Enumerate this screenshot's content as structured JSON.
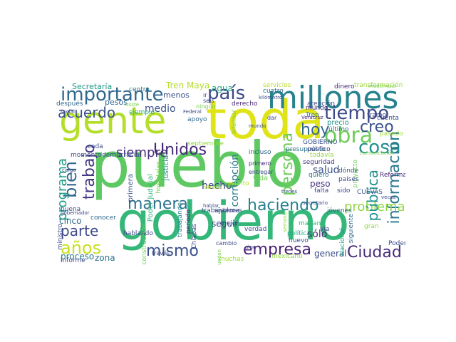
{
  "words": [
    {
      "text": "pueblo",
      "color": "#5ec962"
    },
    {
      "text": "gobierno",
      "color": "#35b779"
    },
    {
      "text": "toda",
      "color": "#dfe318"
    },
    {
      "text": "gente",
      "color": "#b5de2b"
    },
    {
      "text": "millones",
      "color": "#26828e"
    },
    {
      "text": "importante",
      "color": "#31688e"
    },
    {
      "text": "país",
      "color": "#3e4a89"
    },
    {
      "text": "tiempo",
      "color": "#3e4a89"
    },
    {
      "text": "obra",
      "color": "#6ece58"
    },
    {
      "text": "hoy",
      "color": "#31688e"
    },
    {
      "text": "creo",
      "color": "#3b528b"
    },
    {
      "text": "acuerdo",
      "color": "#3b528b"
    },
    {
      "text": "cosa",
      "color": "#21918c"
    },
    {
      "text": "Unidos",
      "color": "#482878"
    },
    {
      "text": "siempre",
      "color": "#472d7b"
    },
    {
      "text": "trabajo",
      "color": "#443983"
    },
    {
      "text": "bien",
      "color": "#31688e"
    },
    {
      "text": "programa",
      "color": "#1fa088"
    },
    {
      "text": "manera",
      "color": "#2c728e"
    },
    {
      "text": "persona",
      "color": "#6ece58"
    },
    {
      "text": "haciendo",
      "color": "#26828e"
    },
    {
      "text": "información",
      "color": "#2a788e"
    },
    {
      "text": "parte",
      "color": "#3e4a89"
    },
    {
      "text": "años",
      "color": "#c8e020"
    },
    {
      "text": "mismo",
      "color": "#3b528b"
    },
    {
      "text": "empresa",
      "color": "#482173"
    },
    {
      "text": "Ciudad",
      "color": "#472c7a"
    },
    {
      "text": "problema",
      "color": "#90d743"
    },
    {
      "text": "salud",
      "color": "#3b528b"
    },
    {
      "text": "pública",
      "color": "#21918c"
    },
    {
      "text": "medio",
      "color": "#3b528b"
    },
    {
      "text": "corrupción",
      "color": "#2a788e"
    },
    {
      "text": "hecho",
      "color": "#3e4a89"
    },
    {
      "text": "sólo",
      "color": "#482878"
    },
    {
      "text": "peso",
      "color": "#46337e"
    },
    {
      "text": "seguir",
      "color": "#3e4a89"
    },
    {
      "text": "proceso",
      "color": "#2a788e"
    },
    {
      "text": "cinco",
      "color": "#31688e"
    },
    {
      "text": "zona",
      "color": "#2c728e"
    },
    {
      "text": "general",
      "color": "#3e4a89"
    },
    {
      "text": "Tren Maya",
      "color": "#b5de2b"
    },
    {
      "text": "agua",
      "color": "#22a884"
    },
    {
      "text": "Secretaría",
      "color": "#1f988b"
    },
    {
      "text": "menos",
      "color": "#3b528b"
    },
    {
      "text": "pesos",
      "color": "#31688e"
    },
    {
      "text": "centro",
      "color": "#2a788e"
    },
    {
      "text": "después",
      "color": "#31688e"
    },
    {
      "text": "ejemplo",
      "color": "#22a884"
    },
    {
      "text": "derecho",
      "color": "#482878"
    },
    {
      "text": "mundo",
      "color": "#46337e"
    },
    {
      "text": "cuatro",
      "color": "#31688e"
    },
    {
      "text": "servicios",
      "color": "#b5de2b"
    },
    {
      "text": "dinero",
      "color": "#482878"
    },
    {
      "text": "transformación",
      "color": "#a0da39"
    },
    {
      "text": "cuenta",
      "color": "#3e4a89"
    },
    {
      "text": "tramo",
      "color": "#3e4a89"
    },
    {
      "text": "atención",
      "color": "#3e4a89"
    },
    {
      "text": "Tren",
      "color": "#2c728e"
    },
    {
      "text": "precio",
      "color": "#21918c"
    },
    {
      "text": "último",
      "color": "#31688e"
    },
    {
      "text": "pasado",
      "color": "#a0da39"
    },
    {
      "text": "GOBIERNO",
      "color": "#3b528b"
    },
    {
      "text": "proyecto",
      "color": "#6ece58"
    },
    {
      "text": "público",
      "color": "#482878"
    },
    {
      "text": "seguridad",
      "color": "#443983"
    },
    {
      "text": "todavía",
      "color": "#90d743"
    },
    {
      "text": "presupuesto",
      "color": "#2c728e"
    },
    {
      "text": "incluso",
      "color": "#31688e"
    },
    {
      "text": "vida",
      "color": "#6ece58"
    },
    {
      "text": "justicia",
      "color": "#21918c"
    },
    {
      "text": "primera",
      "color": "#3b528b"
    },
    {
      "text": "Poder Judicial",
      "color": "#35b779"
    },
    {
      "text": "hospitales",
      "color": "#7ad151"
    },
    {
      "text": "septiembre",
      "color": "#90d743"
    },
    {
      "text": "apoyo",
      "color": "#31688e"
    },
    {
      "text": "cada",
      "color": "#3e4a89"
    },
    {
      "text": "momento",
      "color": "#3e4a89"
    },
    {
      "text": "democracia",
      "color": "#3b528b"
    },
    {
      "text": "buena",
      "color": "#3e4a89"
    },
    {
      "text": "trabajando",
      "color": "#26828e"
    },
    {
      "text": "periodo",
      "color": "#482878"
    },
    {
      "text": "Chiapas",
      "color": "#3e4a89"
    },
    {
      "text": "trabajadores",
      "color": "#3b528b"
    },
    {
      "text": "sistema",
      "color": "#3e4a89"
    },
    {
      "text": "mejor",
      "color": "#3b528b"
    },
    {
      "text": "verdad",
      "color": "#3e4a89"
    },
    {
      "text": "política",
      "color": "#22a884"
    },
    {
      "text": "nuevo",
      "color": "#3b528b"
    },
    {
      "text": "mañana",
      "color": "#35b779"
    },
    {
      "text": "vía",
      "color": "#3e4a89"
    },
    {
      "text": "jóvenes",
      "color": "#31688e"
    },
    {
      "text": "Nacional",
      "color": "#1fa088"
    },
    {
      "text": "siguiente",
      "color": "#31688e"
    },
    {
      "text": "gran",
      "color": "#90d743"
    },
    {
      "text": "Poder",
      "color": "#3e4a89"
    },
    {
      "text": "Reforma",
      "color": "#482878"
    },
    {
      "text": "CUEVAS",
      "color": "#3b528b"
    },
    {
      "text": "falta",
      "color": "#3e4a89"
    },
    {
      "text": "sido",
      "color": "#3e4a89"
    },
    {
      "text": "quiero",
      "color": "#2c728e"
    },
    {
      "text": "dónde",
      "color": "#3b528b"
    },
    {
      "text": "países",
      "color": "#3e4a89"
    },
    {
      "text": "mexicano",
      "color": "#90d743"
    },
    {
      "text": "informe",
      "color": "#3e4a89"
    },
    {
      "text": "ministro",
      "color": "#3e4a89"
    },
    {
      "text": "conocer",
      "color": "#31688e"
    },
    {
      "text": "hablando",
      "color": "#3e4a89"
    },
    {
      "text": "construcción",
      "color": "#6ece58"
    },
    {
      "text": "través",
      "color": "#3e4a89"
    },
    {
      "text": "muchas",
      "color": "#a0da39"
    },
    {
      "text": "cambio",
      "color": "#3e4a89"
    },
    {
      "text": "primero",
      "color": "#482878"
    },
    {
      "text": "entregar",
      "color": "#3e4a89"
    },
    {
      "text": "asunto",
      "color": "#b5de2b"
    },
    {
      "text": "ningún",
      "color": "#7ad151"
    },
    {
      "text": "seis",
      "color": "#3e4a89"
    },
    {
      "text": "dar",
      "color": "#3e4a89"
    },
    {
      "text": "social",
      "color": "#3e4a89"
    },
    {
      "text": "ir",
      "color": "#3e4a89"
    },
    {
      "text": "Issste",
      "color": "#7ad151"
    },
    {
      "text": "Federal",
      "color": "#3e4a89"
    },
    {
      "text": "informar",
      "color": "#7ad151"
    },
    {
      "text": "kilómetro",
      "color": "#3e4a89"
    },
    {
      "text": "semana",
      "color": "#90d743"
    },
    {
      "text": "Veracruz",
      "color": "#482878"
    },
    {
      "text": "comunicación",
      "color": "#7ad151"
    },
    {
      "text": "veces",
      "color": "#3e4a89"
    },
    {
      "text": "secretario",
      "color": "#3e4a89"
    },
    {
      "text": "trenes",
      "color": "#3e4a89"
    },
    {
      "text": "cargo",
      "color": "#3e4a89"
    },
    {
      "text": "gobernador",
      "color": "#3e4a89"
    },
    {
      "text": "fabricar",
      "color": "#b5de2b"
    },
    {
      "text": "hablar",
      "color": "#3e4a89"
    },
    {
      "text": "puedan",
      "color": "#7ad151"
    },
    {
      "text": "sino",
      "color": "#3e4a89"
    },
    {
      "text": "mundo",
      "color": "#3e4a89"
    },
    {
      "text": "modernizar",
      "color": "#7ad151"
    }
  ]
}
